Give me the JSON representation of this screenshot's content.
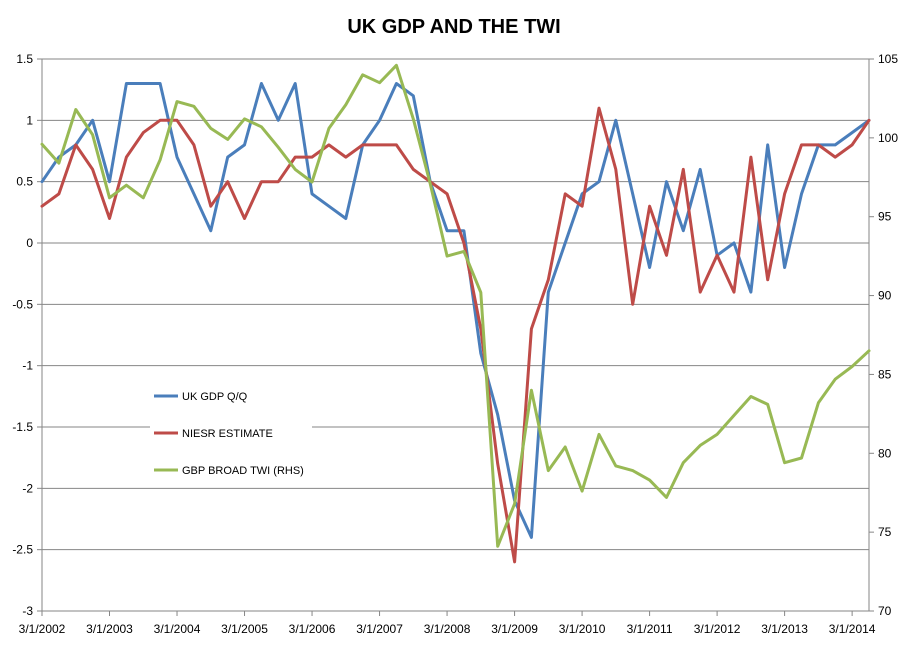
{
  "chart_data": {
    "type": "line",
    "title": "UK GDP AND THE TWI",
    "xlabel": "",
    "ylabel": "",
    "ylabel_right": "",
    "ylim": [
      -3,
      1.5
    ],
    "ylim_right": [
      70,
      105
    ],
    "y_ticks": [
      "1.5",
      "1",
      "0.5",
      "0",
      "-0.5",
      "-1",
      "-1.5",
      "-2",
      "-2.5",
      "-3"
    ],
    "y_ticks_right": [
      "105",
      "100",
      "95",
      "90",
      "85",
      "80",
      "75",
      "70"
    ],
    "x_ticks": [
      "3/1/2002",
      "3/1/2003",
      "3/1/2004",
      "3/1/2005",
      "3/1/2006",
      "3/1/2007",
      "3/1/2008",
      "3/1/2009",
      "3/1/2010",
      "3/1/2011",
      "3/1/2012",
      "3/1/2013",
      "3/1/2014"
    ],
    "x_start": 2002.0,
    "x_end": 2014.25,
    "grid": true,
    "legend_position": "left-middle",
    "series": [
      {
        "name": "UK GDP Q/Q",
        "axis": "left",
        "color": "#4a7ebb",
        "x": [
          2002.0,
          2002.25,
          2002.5,
          2002.75,
          2003.0,
          2003.25,
          2003.5,
          2003.75,
          2004.0,
          2004.25,
          2004.5,
          2004.75,
          2005.0,
          2005.25,
          2005.5,
          2005.75,
          2006.0,
          2006.25,
          2006.5,
          2006.75,
          2007.0,
          2007.25,
          2007.5,
          2007.75,
          2008.0,
          2008.25,
          2008.5,
          2008.75,
          2009.0,
          2009.25,
          2009.5,
          2009.75,
          2010.0,
          2010.25,
          2010.5,
          2010.75,
          2011.0,
          2011.25,
          2011.5,
          2011.75,
          2012.0,
          2012.25,
          2012.5,
          2012.75,
          2013.0,
          2013.25,
          2013.5,
          2013.75,
          2014.0,
          2014.25
        ],
        "values": [
          0.5,
          0.7,
          0.8,
          1.0,
          0.5,
          1.3,
          1.3,
          1.3,
          0.7,
          0.4,
          0.1,
          0.7,
          0.8,
          1.3,
          1.0,
          1.3,
          0.4,
          0.3,
          0.2,
          0.8,
          1.0,
          1.3,
          1.2,
          0.5,
          0.1,
          0.1,
          -0.9,
          -1.4,
          -2.1,
          -2.4,
          -0.4,
          0.0,
          0.4,
          0.5,
          1.0,
          0.4,
          -0.2,
          0.5,
          0.1,
          0.6,
          -0.1,
          0.0,
          -0.4,
          0.8,
          -0.2,
          0.4,
          0.8,
          0.8,
          0.9,
          1.0
        ]
      },
      {
        "name": "NIESR ESTIMATE",
        "axis": "left",
        "color": "#be4b48",
        "x": [
          2002.0,
          2002.25,
          2002.5,
          2002.75,
          2003.0,
          2003.25,
          2003.5,
          2003.75,
          2004.0,
          2004.25,
          2004.5,
          2004.75,
          2005.0,
          2005.25,
          2005.5,
          2005.75,
          2006.0,
          2006.25,
          2006.5,
          2006.75,
          2007.0,
          2007.25,
          2007.5,
          2007.75,
          2008.0,
          2008.25,
          2008.5,
          2008.75,
          2009.0,
          2009.25,
          2009.5,
          2009.75,
          2010.0,
          2010.25,
          2010.5,
          2010.75,
          2011.0,
          2011.25,
          2011.5,
          2011.75,
          2012.0,
          2012.25,
          2012.5,
          2012.75,
          2013.0,
          2013.25,
          2013.5,
          2013.75,
          2014.0,
          2014.25
        ],
        "values": [
          0.3,
          0.4,
          0.8,
          0.6,
          0.2,
          0.7,
          0.9,
          1.0,
          1.0,
          0.8,
          0.3,
          0.5,
          0.2,
          0.5,
          0.5,
          0.7,
          0.7,
          0.8,
          0.7,
          0.8,
          0.8,
          0.8,
          0.6,
          0.5,
          0.4,
          0.0,
          -0.7,
          -1.8,
          -2.6,
          -0.7,
          -0.3,
          0.4,
          0.3,
          1.1,
          0.6,
          -0.5,
          0.3,
          -0.1,
          0.6,
          -0.4,
          -0.1,
          -0.4,
          0.7,
          -0.3,
          0.4,
          0.8,
          0.8,
          0.7,
          0.8,
          1.0
        ]
      },
      {
        "name": "GBP BROAD TWI (RHS)",
        "axis": "right",
        "color": "#98b954",
        "x": [
          2002.0,
          2002.25,
          2002.5,
          2002.75,
          2003.0,
          2003.25,
          2003.5,
          2003.75,
          2004.0,
          2004.25,
          2004.5,
          2004.75,
          2005.0,
          2005.25,
          2005.5,
          2005.75,
          2006.0,
          2006.25,
          2006.5,
          2006.75,
          2007.0,
          2007.25,
          2007.5,
          2007.75,
          2008.0,
          2008.25,
          2008.5,
          2008.75,
          2009.0,
          2009.25,
          2009.5,
          2009.75,
          2010.0,
          2010.25,
          2010.5,
          2010.75,
          2011.0,
          2011.25,
          2011.5,
          2011.75,
          2012.0,
          2012.25,
          2012.5,
          2012.75,
          2013.0,
          2013.25,
          2013.5,
          2013.75,
          2014.0,
          2014.25
        ],
        "values": [
          99.6,
          98.4,
          101.8,
          100.2,
          96.2,
          97.0,
          96.2,
          98.6,
          102.3,
          102.0,
          100.6,
          99.9,
          101.2,
          100.7,
          99.4,
          98.0,
          97.2,
          100.6,
          102.1,
          104.0,
          103.5,
          104.6,
          101.2,
          97.1,
          92.5,
          92.8,
          90.2,
          74.1,
          76.8,
          84.0,
          78.9,
          80.4,
          77.6,
          81.2,
          79.2,
          78.9,
          78.3,
          77.2,
          79.4,
          80.5,
          81.2,
          82.4,
          83.6,
          83.1,
          79.4,
          79.7,
          83.2,
          84.7,
          85.5,
          86.5
        ]
      }
    ]
  }
}
